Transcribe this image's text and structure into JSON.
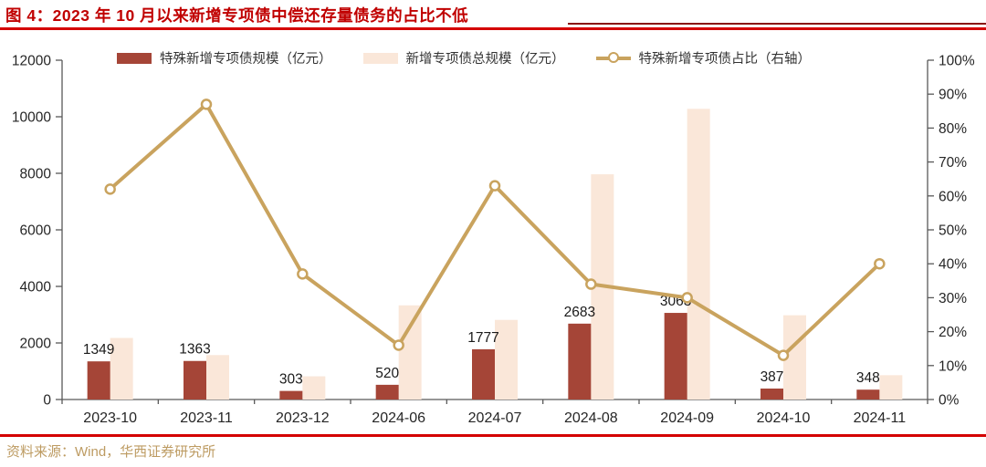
{
  "header": {
    "title": "图 4：2023 年 10 月以来新增专项债中偿还存量债务的占比不低"
  },
  "legend": {
    "items": [
      {
        "label": "特殊新增专项债规模（亿元）",
        "marker": "bar-swatch",
        "color": "#A54537"
      },
      {
        "label": "新增专项债总规模（亿元）",
        "marker": "bar-swatch",
        "color": "#FAE7D9"
      },
      {
        "label": "特殊新增专项债占比（右轴）",
        "marker": "line-circle-marker",
        "color": "#C9A35E"
      }
    ]
  },
  "chart_data": {
    "type": "combo bar+line",
    "categories": [
      "2023-10",
      "2023-11",
      "2023-12",
      "2024-06",
      "2024-07",
      "2024-08",
      "2024-09",
      "2024-10",
      "2024-11"
    ],
    "series": [
      {
        "name": "特殊新增专项债规模（亿元）",
        "type": "bar",
        "axis": "left",
        "color": "#A54537",
        "values": [
          1349,
          1363,
          303,
          520,
          1777,
          2683,
          3063,
          387,
          348
        ],
        "show_labels": true
      },
      {
        "name": "新增专项债总规模（亿元）",
        "type": "bar",
        "axis": "left",
        "color": "#FAE7D9",
        "values": [
          2178,
          1571,
          820,
          3330,
          2815,
          7965,
          10280,
          2980,
          860
        ],
        "show_labels": false
      },
      {
        "name": "特殊新增专项债占比（右轴）",
        "type": "line",
        "axis": "right",
        "color": "#C9A35E",
        "unit": "%",
        "values": [
          62,
          87,
          37,
          16,
          63,
          34,
          30,
          13,
          40
        ]
      }
    ],
    "left_axis": {
      "min": 0,
      "max": 12000,
      "step": 2000
    },
    "right_axis": {
      "min": 0,
      "max": 100,
      "step": 10,
      "suffix": "%"
    },
    "grid": false,
    "legend_position": "top"
  },
  "footer": {
    "source": "资料来源：Wind，华西证券研究所"
  },
  "colors": {
    "title_red": "#C00000",
    "rule_red": "#D40000",
    "thin_rule_dark_red": "#8A130C",
    "bar_special": "#A54537",
    "bar_total": "#FAE7D9",
    "line_gold": "#C9A35E",
    "axis_line": "#595959",
    "tick_label": "#262626",
    "bar_value_label": "#1A1A1A",
    "footer_gold": "#BD9B62",
    "background": "#FFFFFF"
  }
}
